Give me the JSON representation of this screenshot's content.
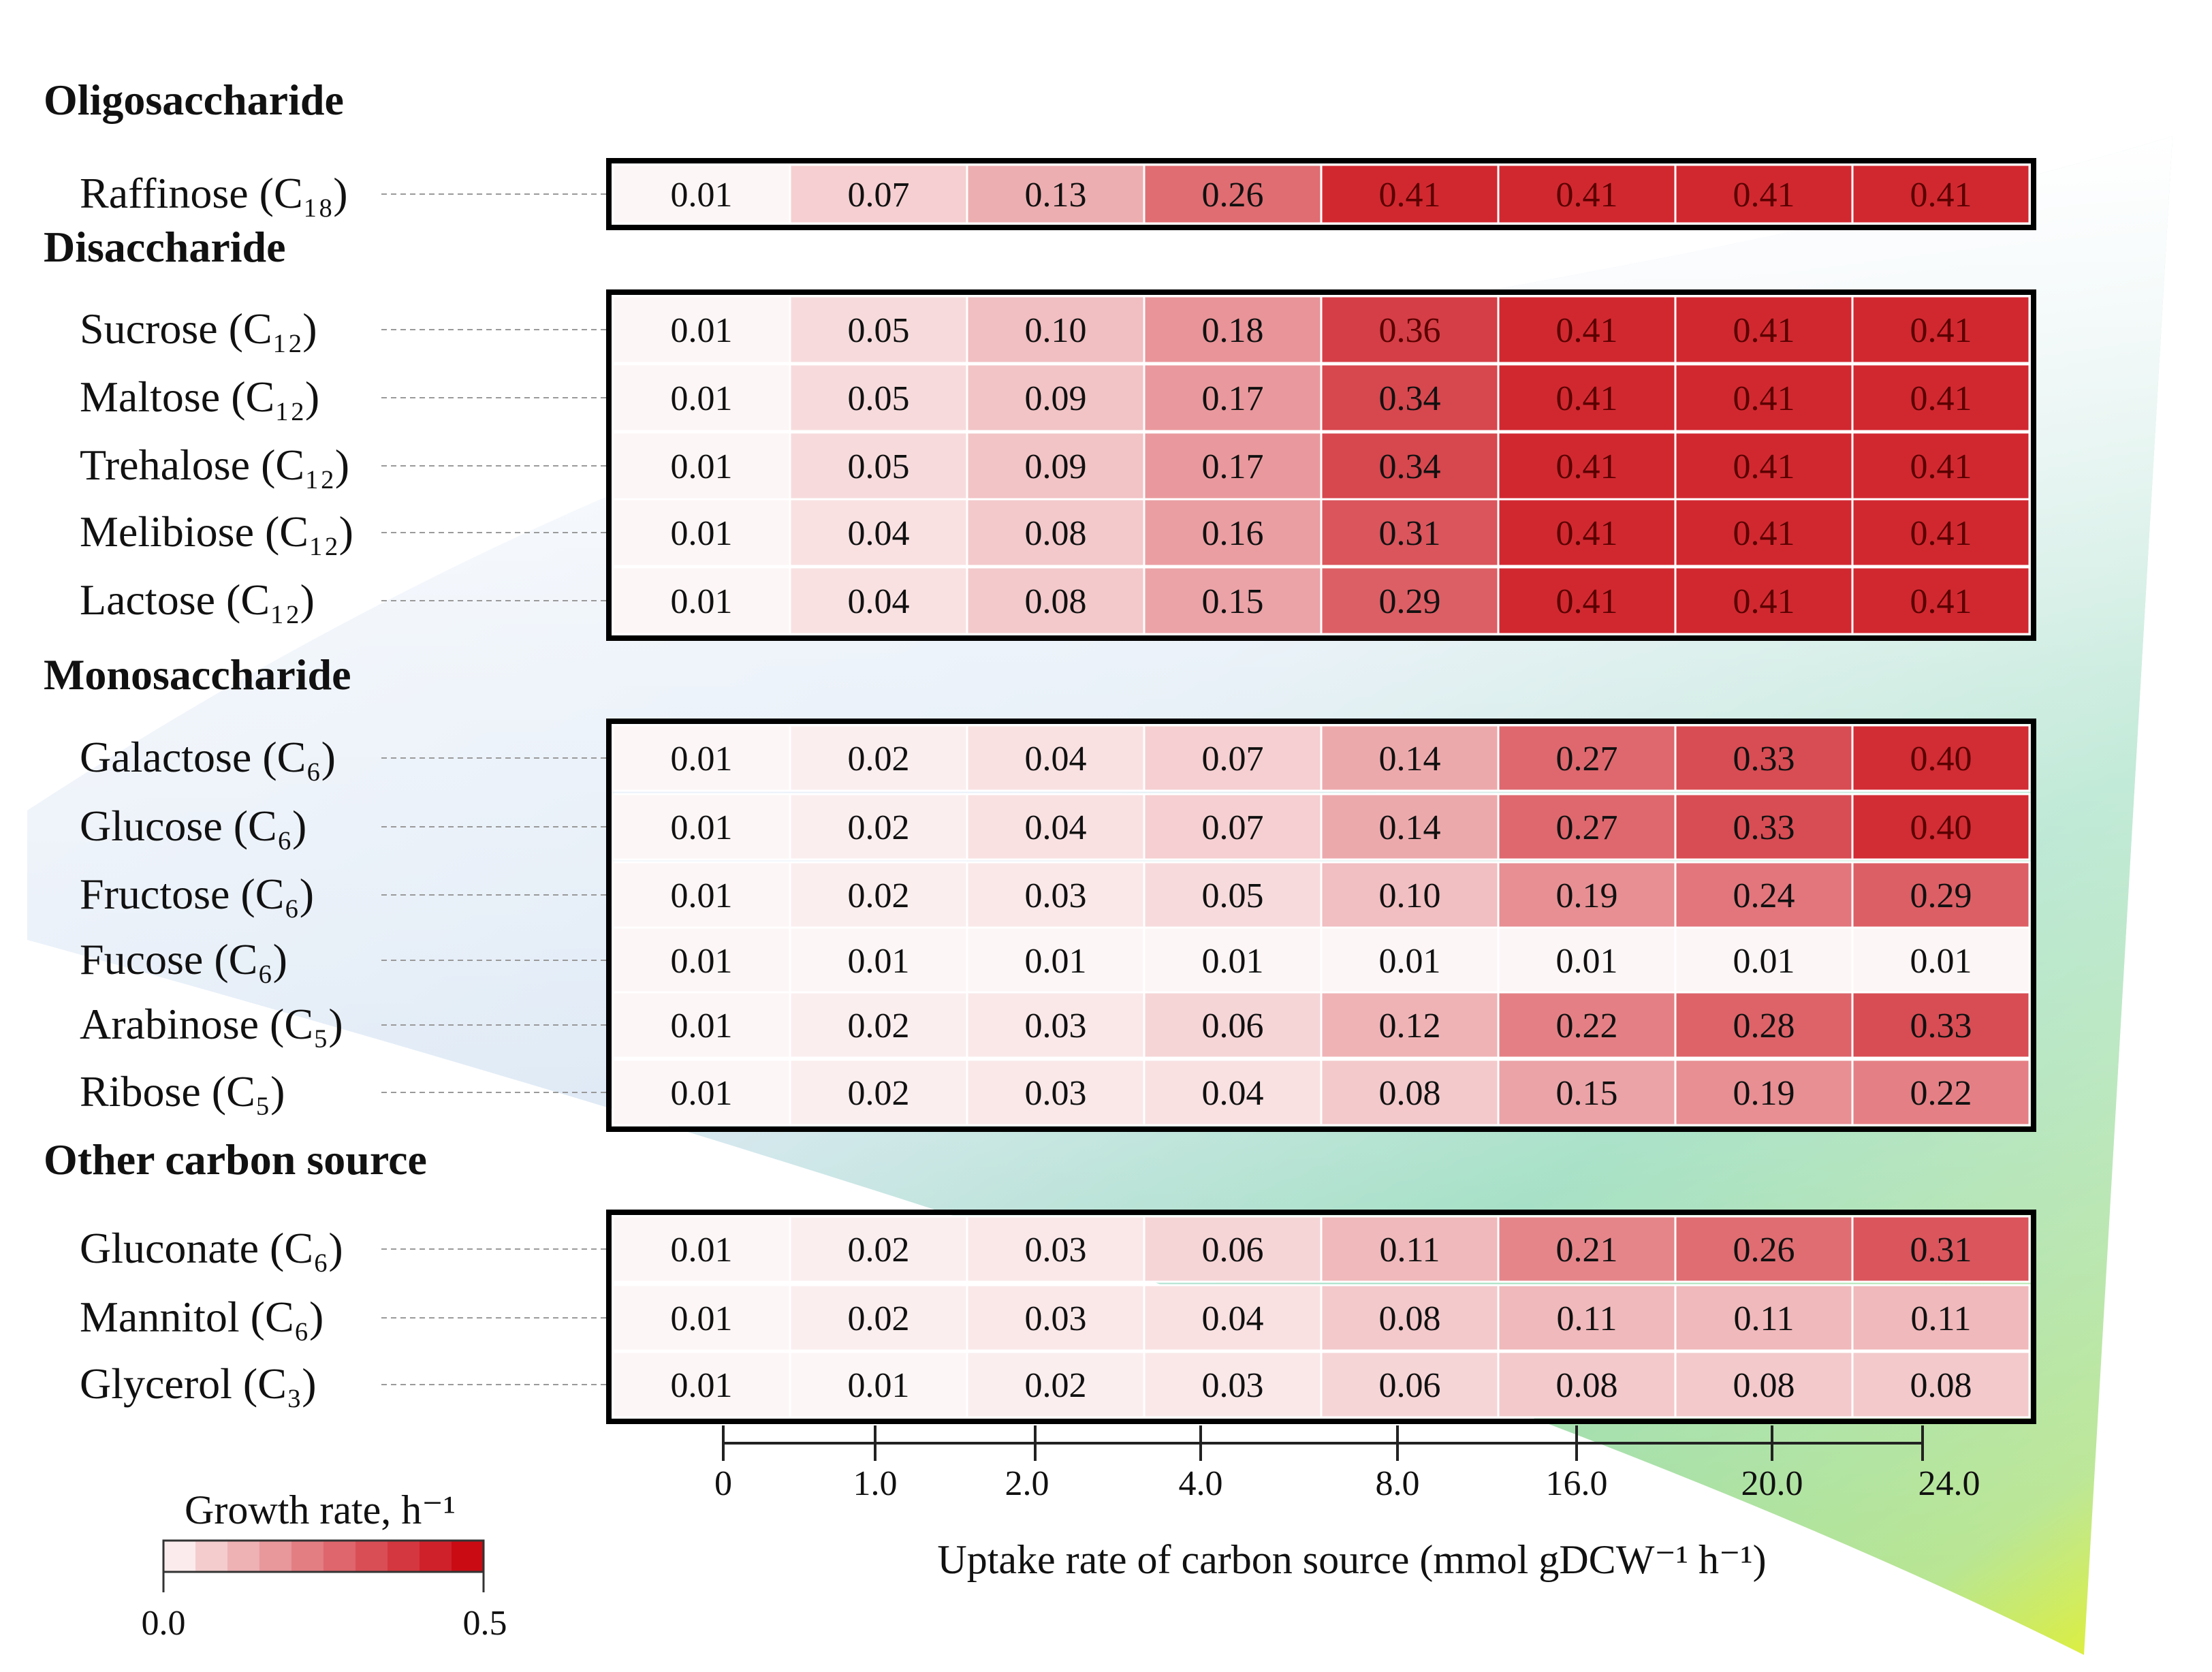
{
  "chart_data": {
    "type": "heatmap",
    "title": "",
    "xlabel": "Uptake rate of carbon source (mmol gDCW⁻¹ h⁻¹)",
    "x_ticks": [
      "0",
      "1.0",
      "2.0",
      "4.0",
      "8.0",
      "16.0",
      "20.0",
      "24.0"
    ],
    "columns": [
      0,
      1.0,
      2.0,
      4.0,
      8.0,
      16.0,
      20.0,
      24.0
    ],
    "colorbar": {
      "title": "Growth rate, h⁻¹",
      "min": 0.0,
      "max": 0.5,
      "min_label": "0.0",
      "max_label": "0.5",
      "color_low": "#ffffff",
      "color_high": "#c8000a"
    },
    "groups": [
      {
        "name": "Oligosaccharide",
        "rows": [
          {
            "label": "Raffinose (C₁₈)",
            "values": [
              0.01,
              0.07,
              0.13,
              0.26,
              0.41,
              0.41,
              0.41,
              0.41
            ]
          }
        ]
      },
      {
        "name": "Disaccharide",
        "rows": [
          {
            "label": "Sucrose (C₁₂)",
            "values": [
              0.01,
              0.05,
              0.1,
              0.18,
              0.36,
              0.41,
              0.41,
              0.41
            ]
          },
          {
            "label": "Maltose (C₁₂)",
            "values": [
              0.01,
              0.05,
              0.09,
              0.17,
              0.34,
              0.41,
              0.41,
              0.41
            ]
          },
          {
            "label": "Trehalose (C₁₂)",
            "values": [
              0.01,
              0.05,
              0.09,
              0.17,
              0.34,
              0.41,
              0.41,
              0.41
            ]
          },
          {
            "label": "Melibiose (C₁₂)",
            "values": [
              0.01,
              0.04,
              0.08,
              0.16,
              0.31,
              0.41,
              0.41,
              0.41
            ]
          },
          {
            "label": "Lactose (C₁₂)",
            "values": [
              0.01,
              0.04,
              0.08,
              0.15,
              0.29,
              0.41,
              0.41,
              0.41
            ]
          }
        ]
      },
      {
        "name": "Monosaccharide",
        "rows": [
          {
            "label": "Galactose (C₆)",
            "values": [
              0.01,
              0.02,
              0.04,
              0.07,
              0.14,
              0.27,
              0.33,
              0.4
            ]
          },
          {
            "label": "Glucose (C₆)",
            "values": [
              0.01,
              0.02,
              0.04,
              0.07,
              0.14,
              0.27,
              0.33,
              0.4
            ]
          },
          {
            "label": "Fructose (C₆)",
            "values": [
              0.01,
              0.02,
              0.03,
              0.05,
              0.1,
              0.19,
              0.24,
              0.29
            ]
          },
          {
            "label": "Fucose (C₆)",
            "values": [
              0.01,
              0.01,
              0.01,
              0.01,
              0.01,
              0.01,
              0.01,
              0.01
            ]
          },
          {
            "label": "Arabinose (C₅)",
            "values": [
              0.01,
              0.02,
              0.03,
              0.06,
              0.12,
              0.22,
              0.28,
              0.33
            ]
          },
          {
            "label": "Ribose (C₅)",
            "values": [
              0.01,
              0.02,
              0.03,
              0.04,
              0.08,
              0.15,
              0.19,
              0.22
            ]
          }
        ]
      },
      {
        "name": "Other carbon source",
        "rows": [
          {
            "label": "Gluconate (C₆)",
            "values": [
              0.01,
              0.02,
              0.03,
              0.06,
              0.11,
              0.21,
              0.26,
              0.31
            ]
          },
          {
            "label": "Mannitol (C₆)",
            "values": [
              0.01,
              0.02,
              0.03,
              0.04,
              0.08,
              0.11,
              0.11,
              0.11
            ]
          },
          {
            "label": "Glycerol (C₃)",
            "values": [
              0.01,
              0.01,
              0.02,
              0.03,
              0.06,
              0.08,
              0.08,
              0.08
            ]
          }
        ]
      }
    ]
  }
}
